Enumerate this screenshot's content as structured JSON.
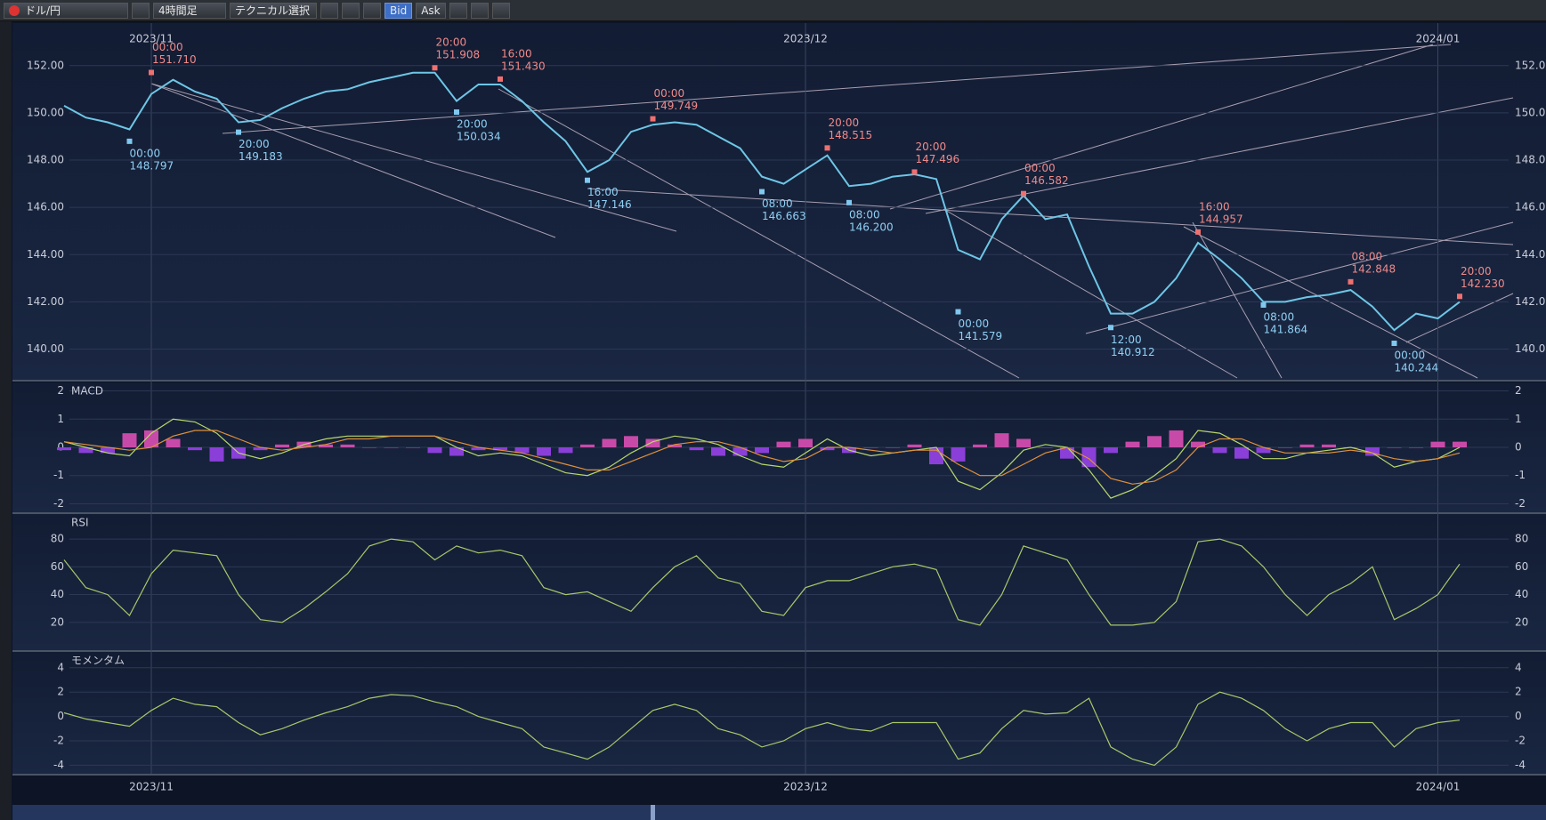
{
  "toolbar": {
    "pair": "ドル/円",
    "timeframe": "4時間足",
    "technical": "テクニカル選択",
    "bid": "Bid",
    "ask": "Ask"
  },
  "chart_data": [
    {
      "type": "line",
      "categories": [
        null,
        null,
        null,
        null,
        "2023/11",
        null,
        null,
        null,
        null,
        null,
        null,
        null,
        null,
        null,
        null,
        null,
        null,
        null,
        null,
        null,
        null,
        null,
        null,
        null,
        null,
        null,
        null,
        null,
        null,
        null,
        null,
        null,
        null,
        null,
        "2023/12",
        null,
        null,
        null,
        null,
        null,
        null,
        null,
        null,
        null,
        null,
        null,
        null,
        null,
        null,
        null,
        null,
        null,
        null,
        null,
        null,
        null,
        null,
        null,
        null,
        null,
        null,
        null,
        null,
        "2024/01",
        null
      ],
      "series": [
        {
          "color": "#6ec6e6",
          "values": [
            150.3,
            149.8,
            149.6,
            149.3,
            150.8,
            151.4,
            150.9,
            150.6,
            149.6,
            149.7,
            150.2,
            150.6,
            150.9,
            151.0,
            151.3,
            151.5,
            151.7,
            151.7,
            150.5,
            151.2,
            151.2,
            150.5,
            149.6,
            148.8,
            147.5,
            148.0,
            149.2,
            149.5,
            149.6,
            149.5,
            149.0,
            148.5,
            147.3,
            147.0,
            147.6,
            148.2,
            146.9,
            147.0,
            147.3,
            147.4,
            147.2,
            144.2,
            143.8,
            145.5,
            146.5,
            145.5,
            145.7,
            143.5,
            141.5,
            141.5,
            142.0,
            143.0,
            144.5,
            143.8,
            143.0,
            142.0,
            142.0,
            142.2,
            142.3,
            142.5,
            141.8,
            140.8,
            141.5,
            141.3,
            142.0
          ]
        }
      ],
      "ylim": [
        138.7,
        153.8
      ],
      "yticks": [
        {
          "value": 140,
          "label": "140.00"
        },
        {
          "value": 142,
          "label": "142.00"
        },
        {
          "value": 144,
          "label": "144.00"
        },
        {
          "value": 146,
          "label": "146.00"
        },
        {
          "value": 148,
          "label": "148.00"
        },
        {
          "value": 150,
          "label": "150.00"
        },
        {
          "value": 152,
          "label": "152.00"
        }
      ],
      "highs": [
        {
          "time": "00:00",
          "value": 151.71,
          "label": "151.710"
        },
        {
          "time": "20:00",
          "value": 151.908,
          "label": "151.908"
        },
        {
          "time": "16:00",
          "value": 151.43,
          "label": "151.430"
        },
        {
          "time": "00:00",
          "value": 149.749,
          "label": "149.749"
        },
        {
          "time": "20:00",
          "value": 148.515,
          "label": "148.515"
        },
        {
          "time": "20:00",
          "value": 147.496,
          "label": "147.496"
        },
        {
          "time": "00:00",
          "value": 146.582,
          "label": "146.582"
        },
        {
          "time": "16:00",
          "value": 144.957,
          "label": "144.957"
        },
        {
          "time": "08:00",
          "value": 142.848,
          "label": "142.848"
        },
        {
          "time": "20:00",
          "value": 142.23,
          "label": "142.230"
        }
      ],
      "lows": [
        {
          "time": "00:00",
          "value": 148.797,
          "label": "148.797"
        },
        {
          "time": "20:00",
          "value": 149.183,
          "label": "149.183"
        },
        {
          "time": "20:00",
          "value": 150.034,
          "label": "150.034"
        },
        {
          "time": "16:00",
          "value": 147.146,
          "label": "147.146"
        },
        {
          "time": "08:00",
          "value": 146.663,
          "label": "146.663"
        },
        {
          "time": "08:00",
          "value": 146.2,
          "label": "146.200"
        },
        {
          "time": "00:00",
          "value": 141.579,
          "label": "141.579"
        },
        {
          "time": "12:00",
          "value": 140.912,
          "label": "140.912"
        },
        {
          "time": "08:00",
          "value": 141.864,
          "label": "141.864"
        },
        {
          "time": "00:00",
          "value": 140.244,
          "label": "140.244"
        }
      ]
    },
    {
      "type": "line",
      "title": "MACD",
      "series": [
        {
          "type": "bar",
          "color": "#8a3fd8",
          "values": [
            -0.1,
            -0.2,
            -0.2,
            0.5,
            0.6,
            0.3,
            -0.1,
            -0.5,
            -0.4,
            -0.1,
            0.1,
            0.2,
            0.1,
            0.1,
            0,
            0,
            0,
            -0.2,
            -0.3,
            -0.1,
            -0.1,
            -0.2,
            -0.3,
            -0.2,
            0.1,
            0.3,
            0.4,
            0.3,
            0.1,
            -0.1,
            -0.3,
            -0.3,
            -0.2,
            0.2,
            0.3,
            -0.1,
            -0.2,
            0,
            0,
            0.1,
            -0.6,
            -0.5,
            0.1,
            0.5,
            0.3,
            0,
            -0.4,
            -0.7,
            -0.2,
            0.2,
            0.4,
            0.6,
            0.2,
            -0.2,
            -0.4,
            -0.2,
            0,
            0.1,
            0.1,
            0,
            -0.3,
            0,
            0,
            0.2,
            0.2
          ]
        },
        {
          "color": "#b8d86a",
          "values": [
            0.2,
            0.0,
            -0.2,
            -0.3,
            0.5,
            1.0,
            0.9,
            0.5,
            -0.2,
            -0.4,
            -0.2,
            0.1,
            0.3,
            0.4,
            0.4,
            0.4,
            0.4,
            0.4,
            0.0,
            -0.3,
            -0.2,
            -0.3,
            -0.6,
            -0.9,
            -1.0,
            -0.7,
            -0.2,
            0.2,
            0.4,
            0.3,
            0.1,
            -0.3,
            -0.6,
            -0.7,
            -0.2,
            0.3,
            -0.1,
            -0.3,
            -0.2,
            -0.1,
            0.0,
            -1.2,
            -1.5,
            -0.9,
            -0.1,
            0.1,
            0.0,
            -0.8,
            -1.8,
            -1.5,
            -1.0,
            -0.4,
            0.6,
            0.5,
            0.1,
            -0.4,
            -0.4,
            -0.2,
            -0.1,
            0.0,
            -0.2,
            -0.7,
            -0.5,
            -0.4,
            0.0
          ]
        },
        {
          "color": "#e0903a",
          "values": [
            0.2,
            0.1,
            0.0,
            -0.1,
            0.0,
            0.4,
            0.6,
            0.6,
            0.3,
            0.0,
            -0.1,
            0.0,
            0.1,
            0.3,
            0.3,
            0.4,
            0.4,
            0.4,
            0.2,
            0.0,
            -0.1,
            -0.2,
            -0.4,
            -0.6,
            -0.8,
            -0.8,
            -0.5,
            -0.2,
            0.1,
            0.2,
            0.2,
            0.0,
            -0.3,
            -0.5,
            -0.4,
            0.0,
            0.0,
            -0.1,
            -0.2,
            -0.1,
            -0.1,
            -0.6,
            -1.0,
            -1.0,
            -0.6,
            -0.2,
            0.0,
            -0.4,
            -1.1,
            -1.3,
            -1.2,
            -0.8,
            0.0,
            0.3,
            0.3,
            0.0,
            -0.2,
            -0.2,
            -0.2,
            -0.1,
            -0.2,
            -0.4,
            -0.5,
            -0.4,
            -0.2
          ]
        }
      ],
      "ylim": [
        -2.3,
        2.3
      ],
      "yticks": [
        -2,
        -1,
        0,
        1,
        2
      ]
    },
    {
      "type": "line",
      "title": "RSI",
      "series": [
        {
          "color": "#a8c86a",
          "values": [
            65,
            45,
            40,
            25,
            55,
            72,
            70,
            68,
            40,
            22,
            20,
            30,
            42,
            55,
            75,
            80,
            78,
            65,
            75,
            70,
            72,
            68,
            45,
            40,
            42,
            35,
            28,
            45,
            60,
            68,
            52,
            48,
            28,
            25,
            45,
            50,
            50,
            55,
            60,
            62,
            58,
            22,
            18,
            40,
            75,
            70,
            65,
            40,
            18,
            18,
            20,
            35,
            78,
            80,
            75,
            60,
            40,
            25,
            40,
            48,
            60,
            22,
            30,
            40,
            62
          ]
        }
      ],
      "ylim": [
        0,
        98
      ],
      "yticks": [
        20,
        40,
        60,
        80
      ]
    },
    {
      "type": "line",
      "title": "モメンタム",
      "series": [
        {
          "color": "#a8c86a",
          "values": [
            0.3,
            -0.2,
            -0.5,
            -0.8,
            0.5,
            1.5,
            1.0,
            0.8,
            -0.5,
            -1.5,
            -1.0,
            -0.3,
            0.3,
            0.8,
            1.5,
            1.8,
            1.7,
            1.2,
            0.8,
            0.0,
            -0.5,
            -1.0,
            -2.5,
            -3.0,
            -3.5,
            -2.5,
            -1.0,
            0.5,
            1.0,
            0.5,
            -1.0,
            -1.5,
            -2.5,
            -2.0,
            -1.0,
            -0.5,
            -1.0,
            -1.2,
            -0.5,
            -0.5,
            -0.5,
            -3.5,
            -3.0,
            -1.0,
            0.5,
            0.2,
            0.3,
            1.5,
            -2.5,
            -3.5,
            -4.0,
            -2.5,
            1.0,
            2.0,
            1.5,
            0.5,
            -1.0,
            -2.0,
            -1.0,
            -0.5,
            -0.5,
            -2.5,
            -1.0,
            -0.5,
            -0.3
          ]
        }
      ],
      "ylim": [
        -4.7,
        5.3
      ],
      "yticks": [
        -4,
        -2,
        0,
        2,
        4
      ]
    }
  ]
}
